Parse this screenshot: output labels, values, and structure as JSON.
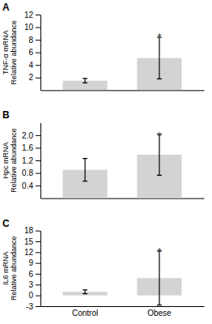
{
  "chart_data": [
    {
      "type": "bar",
      "title": "A",
      "ylabel": "TNF-α mRNA\nRelative abundance",
      "categories": [
        "Control",
        "Obese"
      ],
      "values": [
        1.5,
        5.1
      ],
      "errors": [
        0.35,
        3.3
      ],
      "color": "#d3d3d3",
      "ylim": [
        0,
        12
      ],
      "yticks": [
        2,
        4,
        6,
        8,
        10,
        12
      ],
      "tick_labels": "y",
      "annotations": [
        {
          "text": "*",
          "x": "Obese",
          "y": 8.8
        }
      ]
    },
    {
      "type": "bar",
      "title": "B",
      "ylabel": "Hpc mRNA\nRelative abundance",
      "categories": [
        "Control",
        "Obese"
      ],
      "values": [
        0.9,
        1.38
      ],
      "errors": [
        0.36,
        0.65
      ],
      "color": "#d3d3d3",
      "ylim": [
        0,
        2.4
      ],
      "yticks": [
        0.4,
        0.8,
        1.2,
        1.6,
        {
          "value": 2.0,
          "label": "2.0"
        }
      ],
      "tick_labels": "y",
      "annotations": [
        {
          "text": "*",
          "x": "Obese",
          "y": 2.05
        }
      ]
    },
    {
      "type": "bar",
      "title": "C",
      "ylabel": "IL6 mRNA\nRelative abundance",
      "categories": [
        "Control",
        "Obese"
      ],
      "values": [
        1.0,
        4.8
      ],
      "errors": [
        0.55,
        7.5
      ],
      "color": "#d3d3d3",
      "ylim": [
        -3,
        18
      ],
      "yticks": [
        -3,
        0,
        3,
        6,
        9,
        12,
        15,
        18
      ],
      "annotations": [
        {
          "text": "*",
          "x": "Obese",
          "y": 12.7
        }
      ]
    }
  ]
}
